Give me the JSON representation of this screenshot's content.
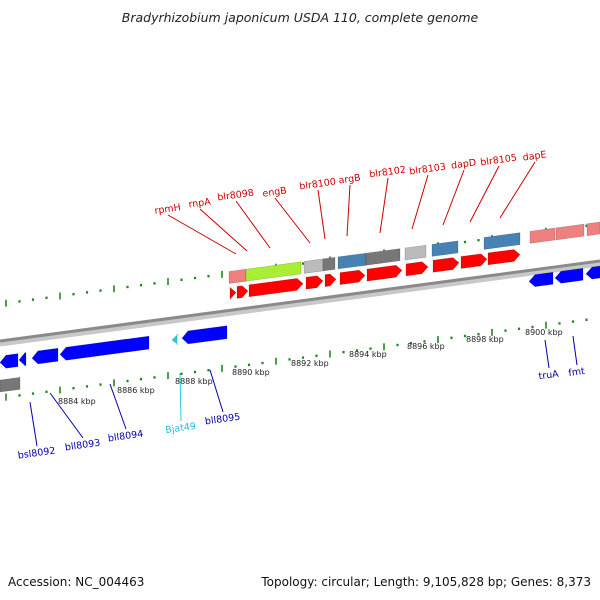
{
  "title": "Bradyrhizobium japonicum USDA 110, complete genome",
  "footer": {
    "accession": "Accession: NC_004463",
    "summary": "Topology: circular; Length: 9,105,828 bp; Genes: 8,373"
  },
  "colors": {
    "backbone": "#8a8a8a",
    "tick": "#1e8a1e",
    "forward_cds": "#ff0000",
    "reverse_cds": "#0000ff",
    "rna": "#22ccdd",
    "forward_label": "#cc0000",
    "reverse_label": "#0000aa",
    "cog_lightred": "#f08080",
    "cog_lime": "#aaee33",
    "cog_gray": "#bbbbbb",
    "cog_darkgray": "#777777",
    "cog_steelblue": "#4682b4"
  },
  "scale_labels": [
    "8884 kbp",
    "8886 kbp",
    "8888 kbp",
    "8890 kbp",
    "8892 kbp",
    "8894 kbp",
    "8896 kbp",
    "8898 kbp",
    "8900 kbp"
  ],
  "forward_genes": [
    "rpmH",
    "rnpA",
    "blr8098",
    "engB",
    "blr8100",
    "argB",
    "blr8102",
    "blr8103",
    "dapD",
    "blr8105",
    "dapE"
  ],
  "reverse_genes": [
    "bsl8092",
    "bll8093",
    "bll8094",
    "Bjat49",
    "bll8095",
    "truA",
    "fmt"
  ]
}
